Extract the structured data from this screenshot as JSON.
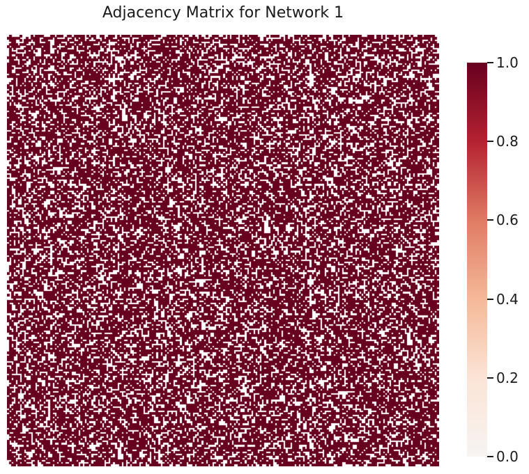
{
  "chart_data": {
    "type": "heatmap",
    "title": "Adjacency Matrix for Network 1",
    "xlabel": "",
    "ylabel": "",
    "matrix_size": [
      200,
      200
    ],
    "value_range": [
      0,
      1
    ],
    "edge_density": 0.6,
    "colormap": "RdBu_r (upper half: white to dark red)",
    "colors": {
      "zero": "#ffffff",
      "one": "#67001f"
    },
    "colorbar": {
      "ticks": [
        0.0,
        0.2,
        0.4,
        0.6,
        0.8,
        1.0
      ],
      "tick_labels": [
        "0.0",
        "0.2",
        "0.4",
        "0.6",
        "0.8",
        "1.0"
      ],
      "placement": "right"
    },
    "grid": false
  }
}
